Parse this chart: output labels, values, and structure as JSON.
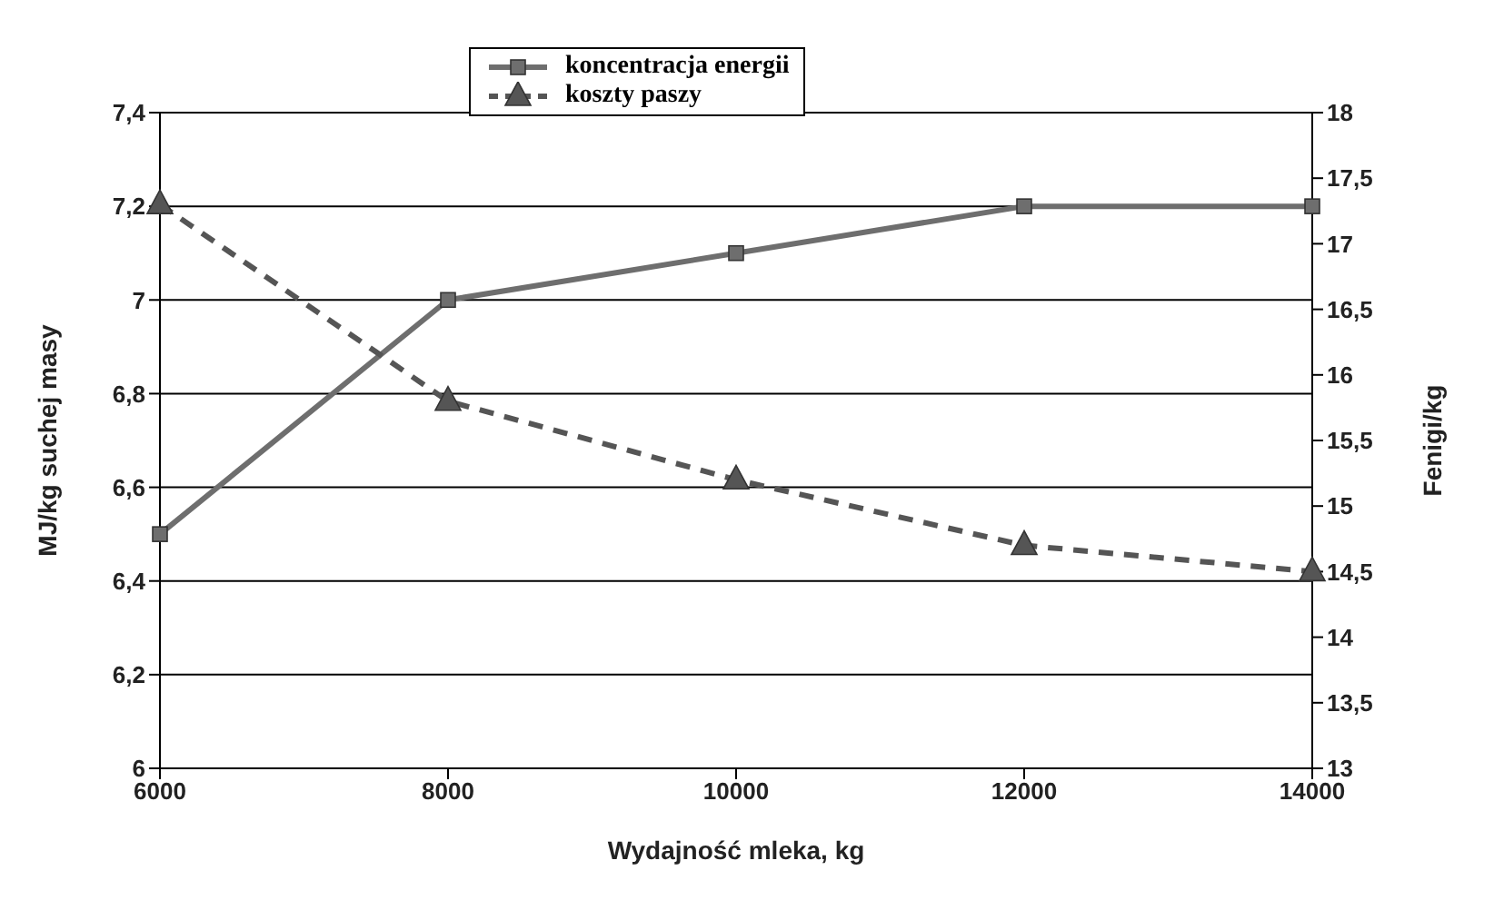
{
  "chart_data": {
    "type": "line",
    "xlabel": "Wydajność mleka, kg",
    "ylabel": "MJ/kg suchej masy",
    "y2label": "Fenigi/kg",
    "categories": [
      "6000",
      "8000",
      "10000",
      "12000",
      "14000"
    ],
    "series": [
      {
        "name": "koncentracja energii",
        "color": "#6e6e6e",
        "values": [
          6.5,
          7.0,
          7.1,
          7.2,
          7.2
        ],
        "marker": "square",
        "line_style": "solid"
      },
      {
        "name": "koszty paszy",
        "color": "#555555",
        "values": [
          17.3,
          15.8,
          15.2,
          14.7,
          14.5
        ],
        "marker": "triangle",
        "line_style": "dashed",
        "axis": "y2"
      }
    ],
    "ylim": [
      6,
      7.4
    ],
    "yticks": [
      6,
      {
        "value": 6.2,
        "label": "6,2"
      },
      {
        "value": 6.4,
        "label": "6,4"
      },
      {
        "value": 6.6,
        "label": "6,6"
      },
      {
        "value": 6.8,
        "label": "6,8"
      },
      7,
      {
        "value": 7.2,
        "label": "7,2"
      },
      {
        "value": 7.4,
        "label": "7,4"
      }
    ],
    "y2lim": [
      13,
      18
    ],
    "y2ticks": [
      13,
      {
        "value": 13.5,
        "label": "13,5"
      },
      14,
      {
        "value": 14.5,
        "label": "14,5"
      },
      15,
      {
        "value": 15.5,
        "label": "15,5"
      },
      16,
      {
        "value": 16.5,
        "label": "16,5"
      },
      17,
      {
        "value": 17.5,
        "label": "17,5"
      },
      18
    ],
    "grid": "y",
    "legend": "top"
  }
}
